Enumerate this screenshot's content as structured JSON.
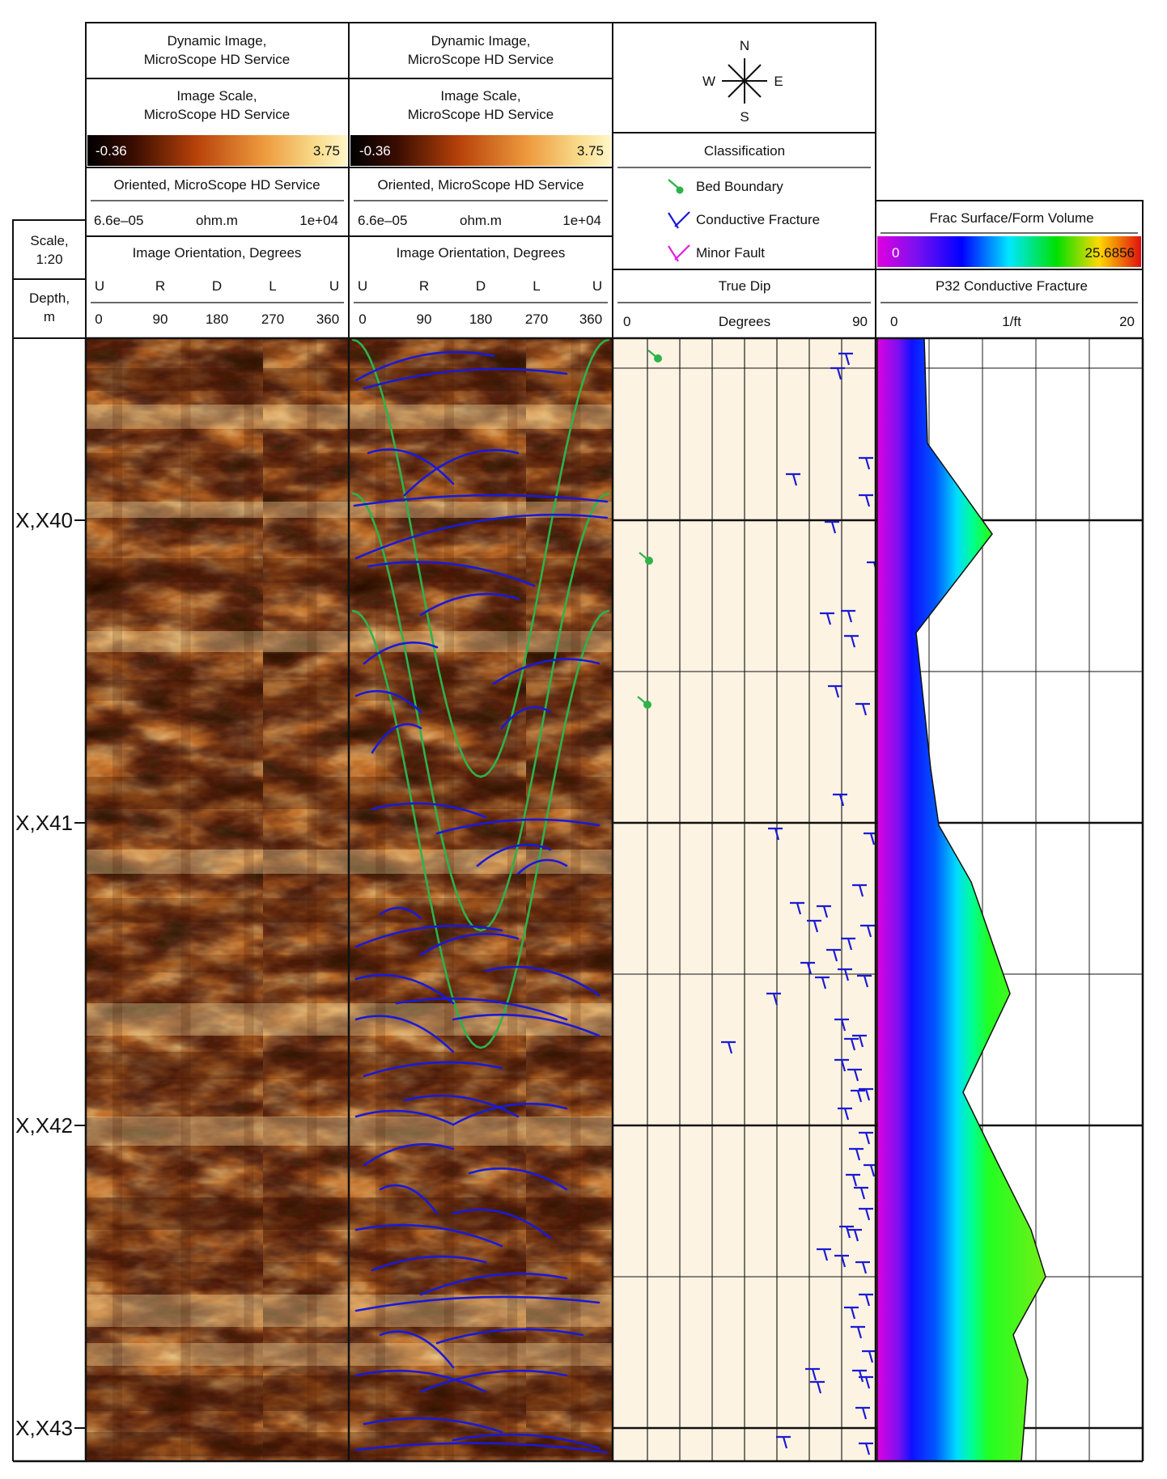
{
  "depth_track": {
    "scale_label": "Scale,",
    "scale_value": "1:20",
    "depth_label": "Depth,",
    "depth_unit": "m",
    "depth_labels": [
      "X,X40",
      "X,X41",
      "X,X42",
      "X,X43"
    ]
  },
  "image_tracks": [
    {
      "title_line1": "Dynamic Image,",
      "title_line2": "MicroScope HD Service",
      "scale_title1": "Image Scale,",
      "scale_title2": "MicroScope HD Service",
      "scale_min": "-0.36",
      "scale_max": "3.75",
      "oriented": "Oriented, MicroScope HD Service",
      "res_min": "6.6e–05",
      "res_unit": "ohm.m",
      "res_max": "1e+04",
      "orientation_title": "Image Orientation, Degrees",
      "orientation_letters": [
        "U",
        "R",
        "D",
        "L",
        "U"
      ],
      "orientation_values": [
        "0",
        "90",
        "180",
        "270",
        "360"
      ]
    },
    {
      "title_line1": "Dynamic Image,",
      "title_line2": "MicroScope HD Service",
      "scale_title1": "Image Scale,",
      "scale_title2": "MicroScope HD Service",
      "scale_min": "-0.36",
      "scale_max": "3.75",
      "oriented": "Oriented, MicroScope HD Service",
      "res_min": "6.6e–05",
      "res_unit": "ohm.m",
      "res_max": "1e+04",
      "orientation_title": "Image Orientation, Degrees",
      "orientation_letters": [
        "U",
        "R",
        "D",
        "L",
        "U"
      ],
      "orientation_values": [
        "0",
        "90",
        "180",
        "270",
        "360"
      ]
    }
  ],
  "compass": {
    "n": "N",
    "s": "S",
    "w": "W",
    "e": "E"
  },
  "dip_track": {
    "classification_title": "Classification",
    "legend": [
      {
        "label": "Bed Boundary",
        "color": "#2db34a"
      },
      {
        "label": "Conductive Fracture",
        "color": "#1a1ad6"
      },
      {
        "label": "Minor Fault",
        "color": "#e020e0"
      }
    ],
    "true_dip_title": "True Dip",
    "axis_min": "0",
    "axis_label": "Degrees",
    "axis_max": "90"
  },
  "p32_track": {
    "title": "Frac Surface/Form Volume",
    "scale_min": "0",
    "scale_max": "25.6856",
    "curve_title": "P32 Conductive Fracture",
    "axis_min": "0",
    "axis_unit": "1/ft",
    "axis_max": "20"
  },
  "colors": {
    "bed_boundary": "#2db34a",
    "conductive_fracture": "#1a1ad6",
    "minor_fault": "#e020e0",
    "dip_background": "#fdf3e2"
  }
}
